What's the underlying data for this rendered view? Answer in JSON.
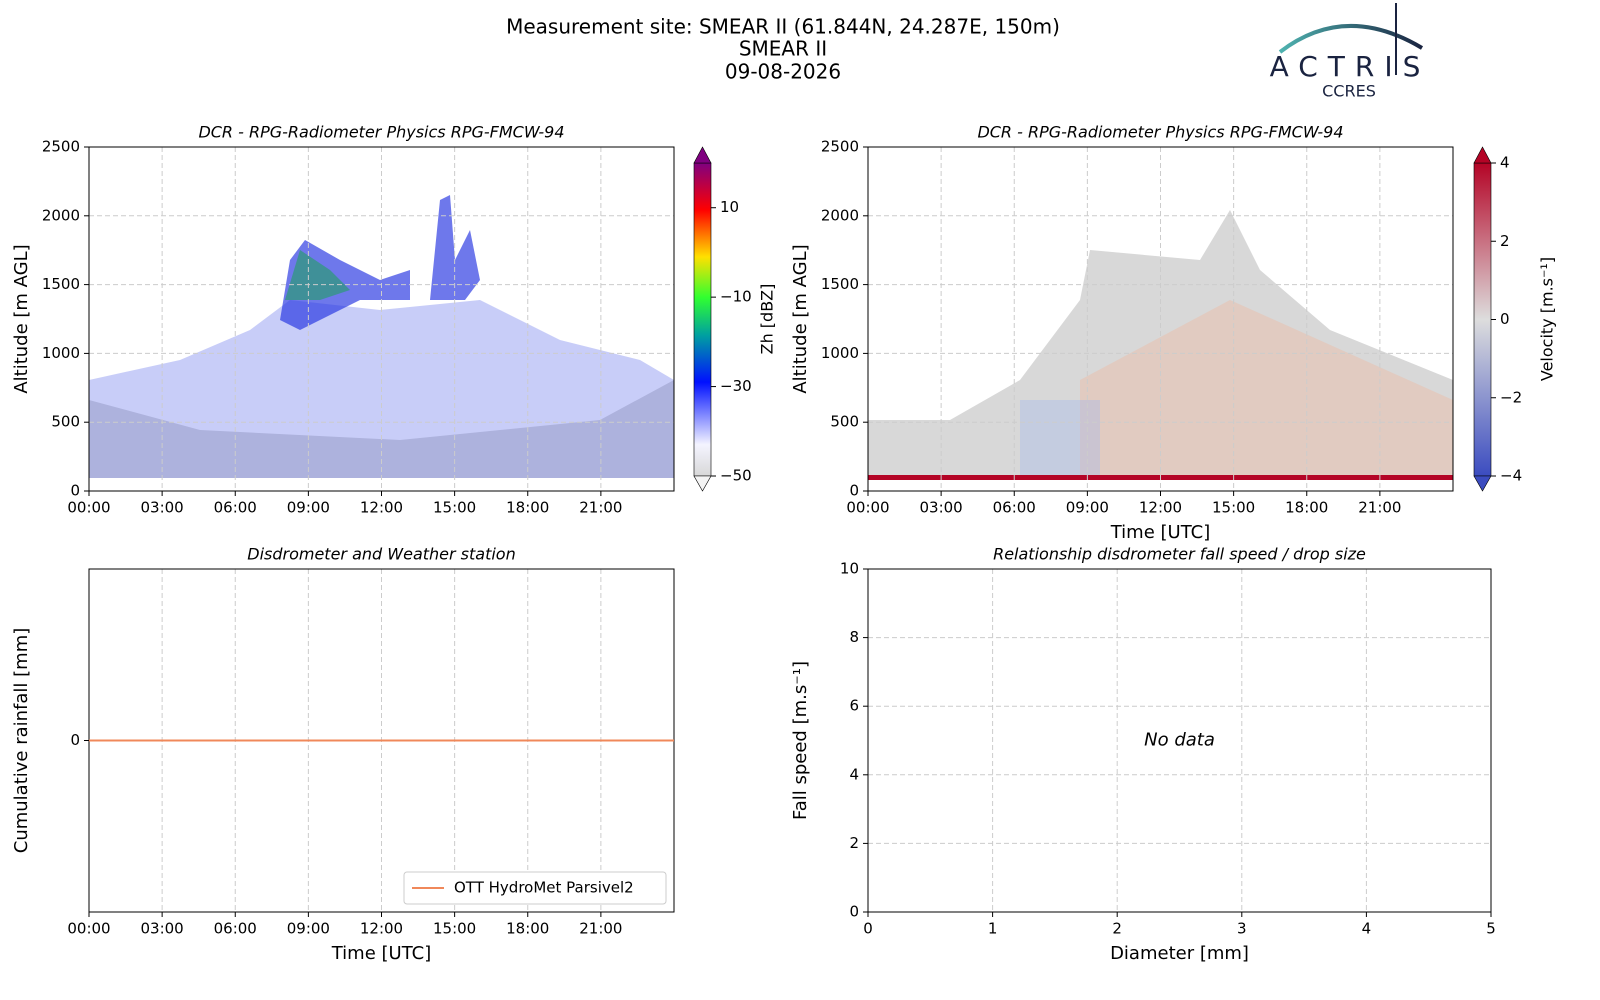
{
  "header": {
    "lines": [
      "Measurement site: SMEAR II (61.844N, 24.287E, 150m)",
      "SMEAR II",
      "09-08-2026"
    ],
    "logo": {
      "name": "ACTRIS",
      "subtitle": "CCRES"
    }
  },
  "chart_data": [
    {
      "type": "heatmap",
      "title": "DCR - RPG-Radiometer Physics RPG-FMCW-94",
      "ylabel": "Altitude [m AGL]",
      "xlim": [
        0,
        24
      ],
      "xticks": [
        {
          "value": 0,
          "label": "00:00"
        },
        {
          "value": 3,
          "label": "03:00"
        },
        {
          "value": 6,
          "label": "06:00"
        },
        {
          "value": 9,
          "label": "09:00"
        },
        {
          "value": 12,
          "label": "12:00"
        },
        {
          "value": 15,
          "label": "15:00"
        },
        {
          "value": 18,
          "label": "18:00"
        },
        {
          "value": 21,
          "label": "21:00"
        }
      ],
      "ylim": [
        0,
        2500
      ],
      "yticks": [
        0,
        500,
        1000,
        1500,
        2000,
        2500
      ],
      "grid": true,
      "colorbar_label": "Zh [dBZ]",
      "clim": [
        -50,
        20
      ],
      "cticks": [
        {
          "value": -50,
          "label": "−50"
        },
        {
          "value": -30,
          "label": "−30"
        },
        {
          "value": -10,
          "label": "−10"
        },
        10
      ]
    },
    {
      "type": "heatmap",
      "title": "DCR - RPG-Radiometer Physics RPG-FMCW-94",
      "ylabel": "Altitude [m AGL]",
      "xlabel": "Time [UTC]",
      "xlim": [
        0,
        24
      ],
      "xticks": [
        {
          "value": 0,
          "label": "00:00"
        },
        {
          "value": 3,
          "label": "03:00"
        },
        {
          "value": 6,
          "label": "06:00"
        },
        {
          "value": 9,
          "label": "09:00"
        },
        {
          "value": 12,
          "label": "12:00"
        },
        {
          "value": 15,
          "label": "15:00"
        },
        {
          "value": 18,
          "label": "18:00"
        },
        {
          "value": 21,
          "label": "21:00"
        }
      ],
      "ylim": [
        0,
        2500
      ],
      "yticks": [
        0,
        500,
        1000,
        1500,
        2000,
        2500
      ],
      "grid": true,
      "colorbar_label": "Velocity [m.s⁻¹]",
      "clim": [
        -4,
        4
      ],
      "cticks": [
        {
          "value": -4,
          "label": "−4"
        },
        {
          "value": -2,
          "label": "−2"
        },
        0,
        2,
        4
      ]
    },
    {
      "type": "line",
      "title": "Disdrometer and Weather station",
      "ylabel": "Cumulative rainfall [mm]",
      "xlabel": "Time [UTC]",
      "xlim": [
        0,
        24
      ],
      "xticks": [
        {
          "value": 0,
          "label": "00:00"
        },
        {
          "value": 3,
          "label": "03:00"
        },
        {
          "value": 6,
          "label": "06:00"
        },
        {
          "value": 9,
          "label": "09:00"
        },
        {
          "value": 12,
          "label": "12:00"
        },
        {
          "value": 15,
          "label": "15:00"
        },
        {
          "value": 18,
          "label": "18:00"
        },
        {
          "value": 21,
          "label": "21:00"
        }
      ],
      "ylim": [
        -1,
        1
      ],
      "yticks": [
        0
      ],
      "grid": true,
      "legend": "lower right",
      "x": [
        0,
        24
      ],
      "series": [
        {
          "name": "OTT HydroMet Parsivel2",
          "color": "#f0885a",
          "values": [
            0,
            0
          ]
        }
      ]
    },
    {
      "type": "scatter",
      "title": "Relationship disdrometer fall speed / drop size",
      "ylabel": "Fall speed [m.s⁻¹]",
      "xlabel": "Diameter [mm]",
      "xlim": [
        0,
        5
      ],
      "xticks": [
        0,
        1,
        2,
        3,
        4,
        5
      ],
      "ylim": [
        0,
        10
      ],
      "yticks": [
        0,
        2,
        4,
        6,
        8,
        10
      ],
      "grid": true,
      "annotation": "No data",
      "x": [],
      "values": []
    }
  ]
}
